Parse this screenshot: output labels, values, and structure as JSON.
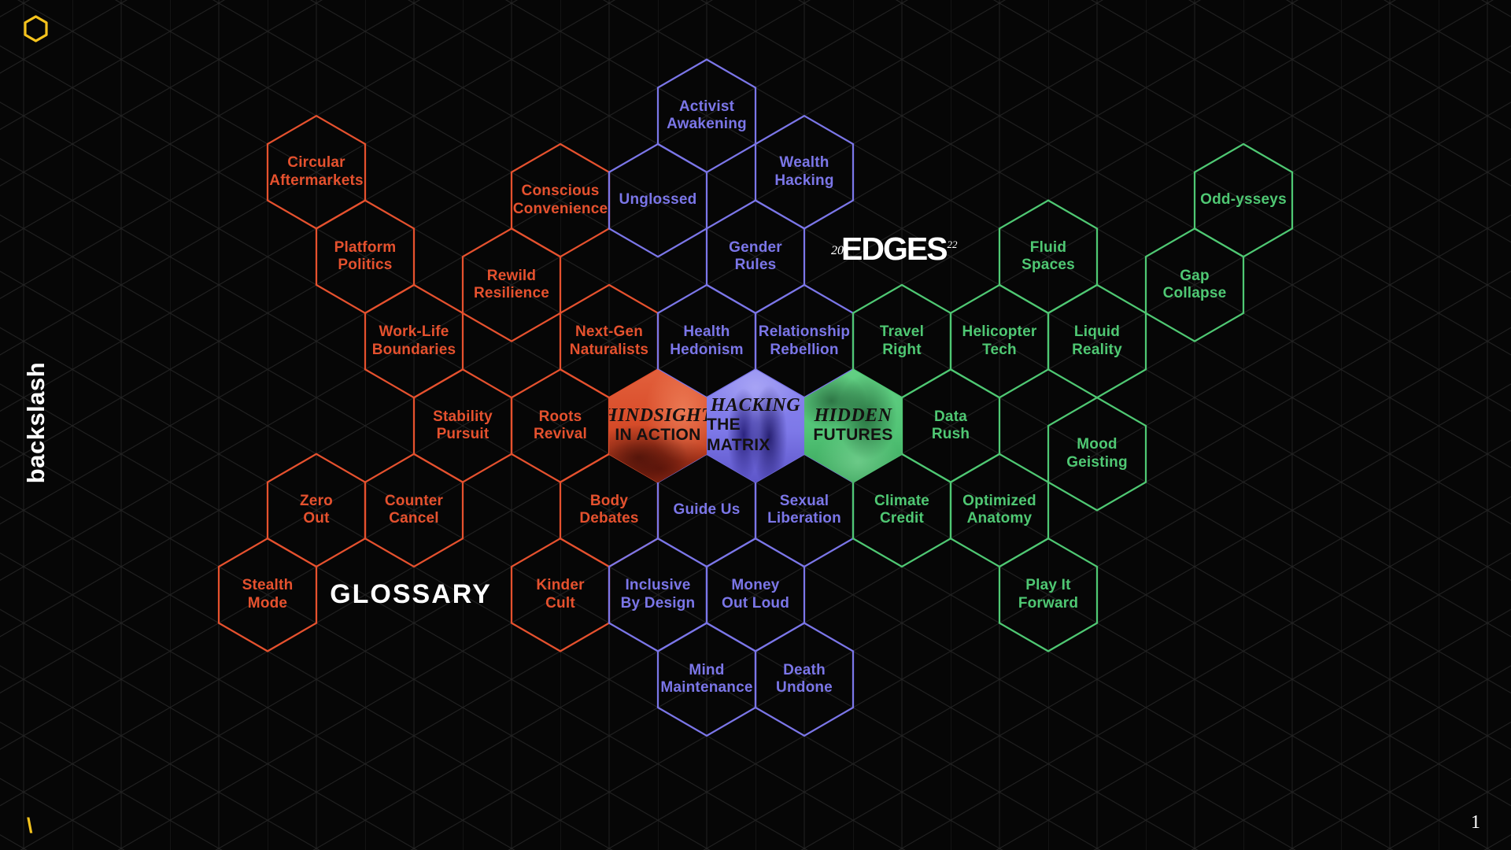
{
  "brand": {
    "vertical_text": "backslash",
    "footer_glyph": "\\"
  },
  "logo": {
    "year_prefix": "20",
    "title": "EDGES",
    "year_suffix": "22"
  },
  "glossary_label": "GLOSSARY",
  "page_number": "1",
  "colors": {
    "background": "#060606",
    "mesh_line": "#232323",
    "orange": "#e5512e",
    "purple": "#7b76e8",
    "green": "#4fc873",
    "yellow": "#f5c31d",
    "white": "#ffffff",
    "feature_text": "#141111"
  },
  "featured": [
    {
      "id": "hindsight",
      "line1": "HINDSIGHT",
      "line2": "IN ACTION",
      "i": 0,
      "j": 0,
      "cluster": "hindsight",
      "image": "red-tinted vintage car street scene"
    },
    {
      "id": "hacking",
      "line1": "HACKING",
      "line2": "THE MATRIX",
      "i": 2,
      "j": 0,
      "cluster": "hacking",
      "image": "purple-tinted two people walking"
    },
    {
      "id": "hidden",
      "line1": "HIDDEN",
      "line2": "FUTURES",
      "i": 4,
      "j": 0,
      "cluster": "hidden",
      "image": "green-tinted surprised woman face"
    }
  ],
  "hexes": [
    {
      "label": "Circular\nAftermarkets",
      "i": -7,
      "j": -9,
      "cluster": "hindsight"
    },
    {
      "label": "Conscious\nConvenience",
      "i": -2,
      "j": -8,
      "cluster": "hindsight"
    },
    {
      "label": "Platform\nPolitics",
      "i": -6,
      "j": -6,
      "cluster": "hindsight"
    },
    {
      "label": "Rewild\nResilience",
      "i": -3,
      "j": -5,
      "cluster": "hindsight"
    },
    {
      "label": "Work-Life\nBoundaries",
      "i": -5,
      "j": -3,
      "cluster": "hindsight"
    },
    {
      "label": "Next-Gen\nNaturalists",
      "i": -1,
      "j": -3,
      "cluster": "hindsight"
    },
    {
      "label": "Stability\nPursuit",
      "i": -4,
      "j": 0,
      "cluster": "hindsight"
    },
    {
      "label": "Roots\nRevival",
      "i": -2,
      "j": 0,
      "cluster": "hindsight"
    },
    {
      "label": "Zero\nOut",
      "i": -7,
      "j": 3,
      "cluster": "hindsight"
    },
    {
      "label": "Counter\nCancel",
      "i": -5,
      "j": 3,
      "cluster": "hindsight"
    },
    {
      "label": "Body\nDebates",
      "i": -1,
      "j": 3,
      "cluster": "hindsight"
    },
    {
      "label": "Stealth\nMode",
      "i": -8,
      "j": 6,
      "cluster": "hindsight"
    },
    {
      "label": "Kinder\nCult",
      "i": -2,
      "j": 6,
      "cluster": "hindsight"
    },
    {
      "label": "Activist\nAwakening",
      "i": 1,
      "j": -11,
      "cluster": "hacking"
    },
    {
      "label": "Wealth\nHacking",
      "i": 3,
      "j": -9,
      "cluster": "hacking"
    },
    {
      "label": "Unglossed",
      "i": 0,
      "j": -8,
      "cluster": "hacking"
    },
    {
      "label": "Gender\nRules",
      "i": 2,
      "j": -6,
      "cluster": "hacking"
    },
    {
      "label": "Health\nHedonism",
      "i": 1,
      "j": -3,
      "cluster": "hacking"
    },
    {
      "label": "Relationship\nRebellion",
      "i": 3,
      "j": -3,
      "cluster": "hacking"
    },
    {
      "label": "Guide Us",
      "i": 1,
      "j": 3,
      "cluster": "hacking"
    },
    {
      "label": "Sexual\nLiberation",
      "i": 3,
      "j": 3,
      "cluster": "hacking"
    },
    {
      "label": "Inclusive\nBy Design",
      "i": 0,
      "j": 6,
      "cluster": "hacking"
    },
    {
      "label": "Money\nOut Loud",
      "i": 2,
      "j": 6,
      "cluster": "hacking"
    },
    {
      "label": "Mind\nMaintenance",
      "i": 1,
      "j": 9,
      "cluster": "hacking"
    },
    {
      "label": "Death\nUndone",
      "i": 3,
      "j": 9,
      "cluster": "hacking"
    },
    {
      "label": "Travel\nRight",
      "i": 5,
      "j": -3,
      "cluster": "hidden"
    },
    {
      "label": "Helicopter\nTech",
      "i": 7,
      "j": -3,
      "cluster": "hidden"
    },
    {
      "label": "Liquid\nReality",
      "i": 9,
      "j": -3,
      "cluster": "hidden"
    },
    {
      "label": "Fluid\nSpaces",
      "i": 8,
      "j": -6,
      "cluster": "hidden"
    },
    {
      "label": "Gap\nCollapse",
      "i": 11,
      "j": -5,
      "cluster": "hidden"
    },
    {
      "label": "Odd-ysseys",
      "i": 12,
      "j": -8,
      "cluster": "hidden"
    },
    {
      "label": "Data\nRush",
      "i": 6,
      "j": 0,
      "cluster": "hidden"
    },
    {
      "label": "Mood\nGeisting",
      "i": 9,
      "j": 1,
      "cluster": "hidden"
    },
    {
      "label": "Climate\nCredit",
      "i": 5,
      "j": 3,
      "cluster": "hidden"
    },
    {
      "label": "Optimized\nAnatomy",
      "i": 7,
      "j": 3,
      "cluster": "hidden"
    },
    {
      "label": "Play It\nForward",
      "i": 8,
      "j": 6,
      "cluster": "hidden"
    }
  ]
}
